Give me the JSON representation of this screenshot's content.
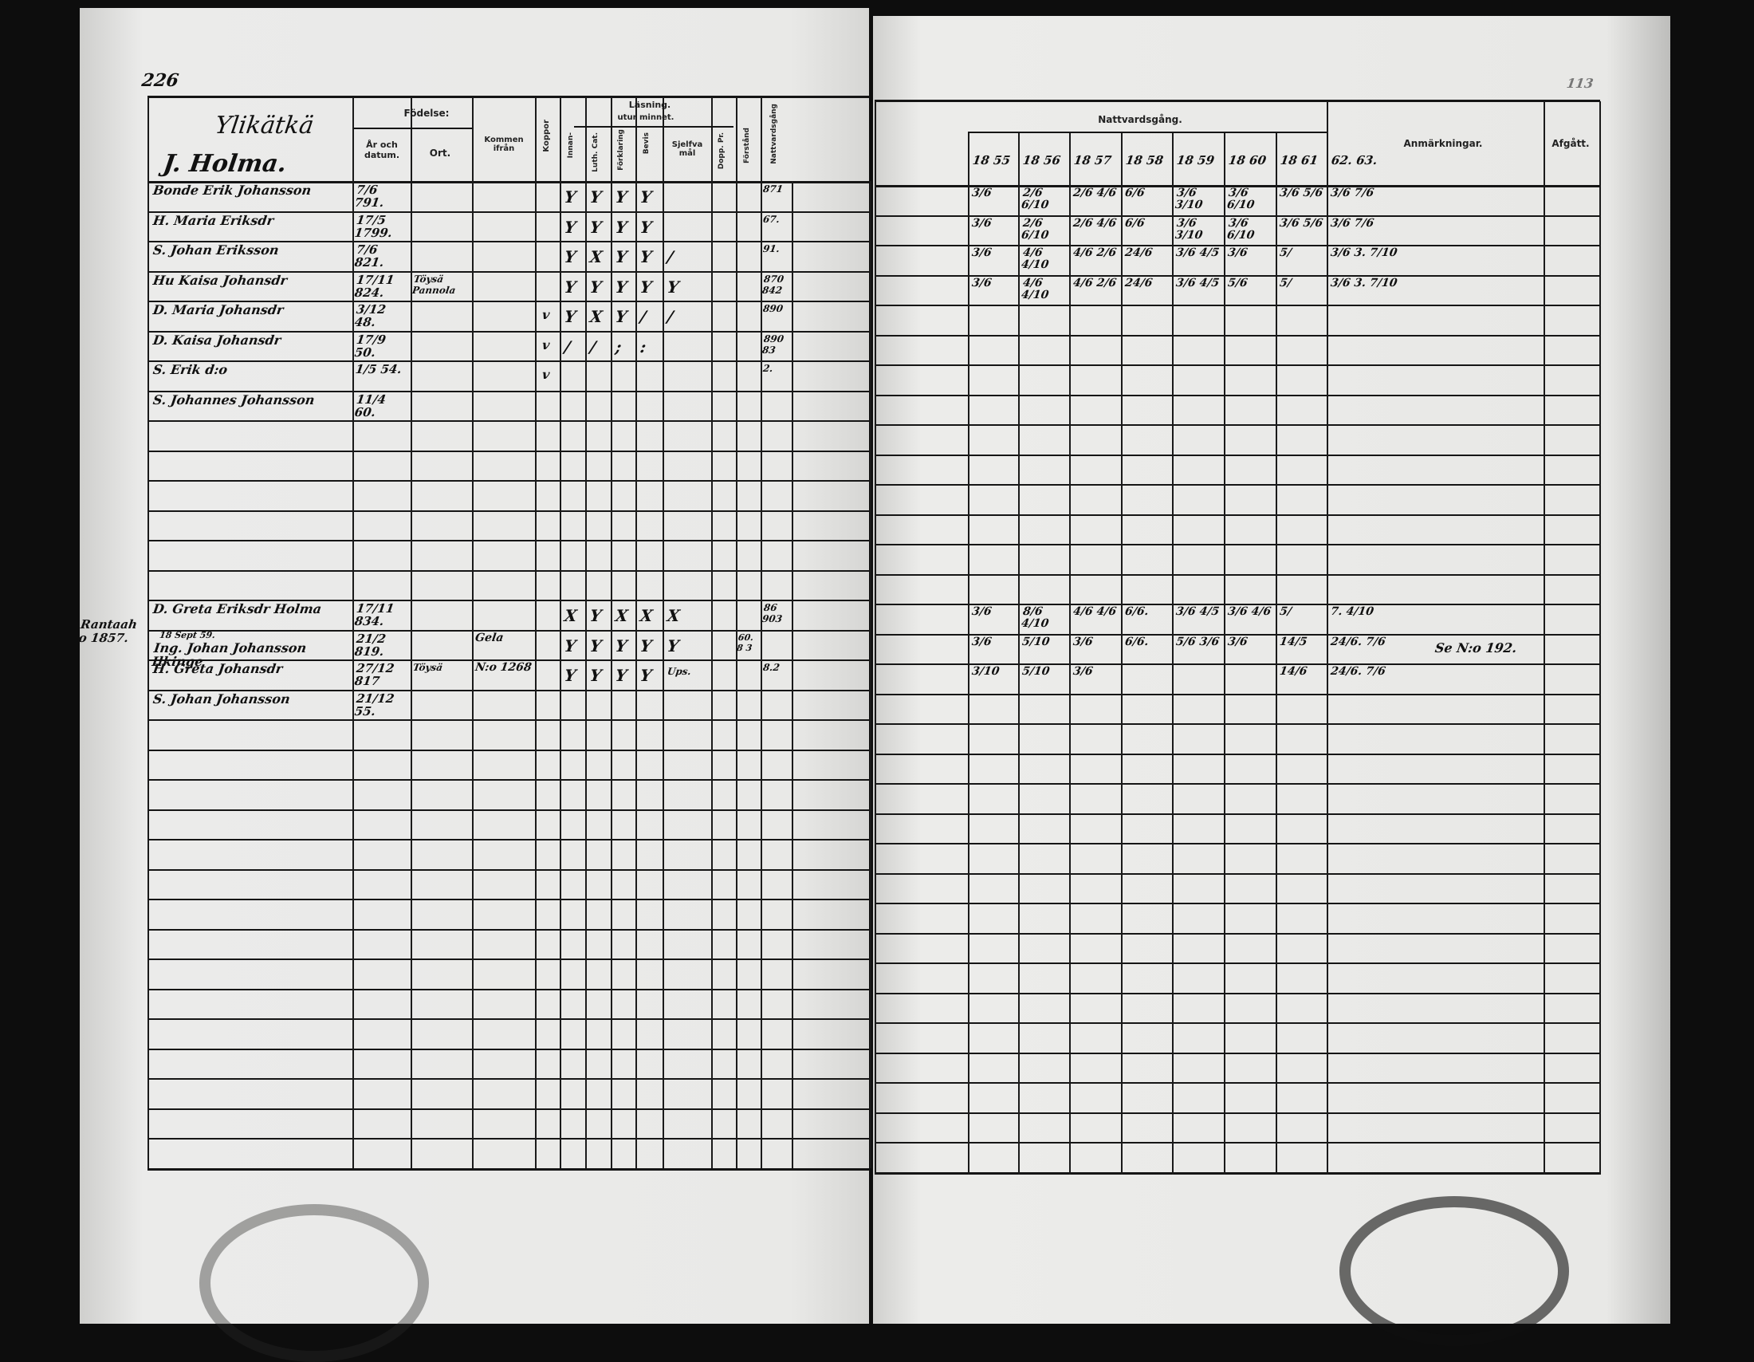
{
  "page_number": "226",
  "left": {
    "title_line1": "Ylikätkä",
    "title_line2": "J. Holma.",
    "headers": {
      "fodelse": "Födelse:",
      "ar": "År och datum.",
      "ort": "Ort.",
      "kommen": "Kommen ifrån",
      "koppor": "Koppor",
      "lasning": "Läsning.",
      "utur_minnet": "utur minnet.",
      "innan": "Innan-",
      "catechism": "Luth. Cat.",
      "forklaring": "Förklaring",
      "bevis": "Bevis",
      "sjelfva": "Sjelfva mål",
      "dopp": "Dopp. Pr.",
      "forstand": "Förstånd",
      "nattvard": "Nattvardsgång"
    },
    "rows": [
      {
        "row": 0,
        "name": "Bonde Erik Johansson",
        "born": "7/6 791.",
        "ort": "",
        "kommen": "",
        "koppor": "",
        "marks": [
          "Y",
          "Y",
          "Y",
          "Y",
          "",
          ""
        ],
        "extra": "",
        "nr": "871"
      },
      {
        "row": 1,
        "name": "H. Maria Eriksdr",
        "born": "17/5 1799.",
        "ort": "",
        "kommen": "",
        "koppor": "",
        "marks": [
          "Y",
          "Y",
          "Y",
          "Y",
          "",
          ""
        ],
        "extra": "",
        "nr": "67."
      },
      {
        "row": 2,
        "name": "S. Johan Eriksson",
        "born": "7/6 821.",
        "ort": "",
        "kommen": "",
        "koppor": "",
        "marks": [
          "Y",
          "X",
          "Y",
          "Y",
          "/",
          ""
        ],
        "extra": "",
        "nr": "91."
      },
      {
        "row": 3,
        "name": "Hu Kaisa Johansdr",
        "born": "17/11 824.",
        "ort": "Töysä Pannola",
        "kommen": "",
        "koppor": "",
        "marks": [
          "Y",
          "Y",
          "Y",
          "Y",
          "Y",
          ""
        ],
        "extra": "",
        "nr": "870 842"
      },
      {
        "row": 4,
        "name": "D. Maria Johansdr",
        "born": "3/12 48.",
        "ort": "",
        "kommen": "",
        "koppor": "v",
        "marks": [
          "Y",
          "X",
          "Y",
          "/",
          "/",
          ""
        ],
        "extra": "",
        "nr": "890"
      },
      {
        "row": 5,
        "name": "D. Kaisa Johansdr",
        "born": "17/9 50.",
        "ort": "",
        "kommen": "",
        "koppor": "v",
        "marks": [
          "/",
          "/",
          ";",
          ":",
          "",
          ""
        ],
        "extra": "",
        "nr": "890 83"
      },
      {
        "row": 6,
        "name": "S. Erik d:o",
        "born": "1/5 54.",
        "ort": "",
        "kommen": "",
        "koppor": "v",
        "marks": [
          "",
          "",
          "",
          "",
          "",
          ""
        ],
        "extra": "",
        "nr": "2."
      },
      {
        "row": 7,
        "name": "S. Johannes Johansson",
        "born": "11/4 60.",
        "ort": "",
        "kommen": "",
        "koppor": "",
        "marks": [
          "",
          "",
          "",
          "",
          "",
          ""
        ],
        "extra": "",
        "nr": ""
      },
      {
        "row": 14,
        "name": "D. Greta Eriksdr Holma",
        "born": "17/11 834.",
        "ort": "",
        "kommen": "",
        "koppor": "",
        "marks": [
          "X",
          "Y",
          "X",
          "X",
          "X",
          ""
        ],
        "extra": "",
        "nr": "86 903"
      },
      {
        "row": 15,
        "name": "Ing. Johan Johansson Ilkinge",
        "born": "21/2 819.",
        "ort": "",
        "kommen": "Gela",
        "koppor": "",
        "marks": [
          "Y",
          "Y",
          "Y",
          "Y",
          "Y",
          ""
        ],
        "extra": "60.8 3",
        "nr": ""
      },
      {
        "row": 16,
        "name": "H. Greta Johansdr",
        "born": "27/12 817",
        "ort": "Töysä",
        "kommen": "N:o 1268",
        "koppor": "",
        "marks": [
          "Y",
          "Y",
          "Y",
          "Y",
          "Ups.",
          ""
        ],
        "extra": "",
        "nr": "8.2"
      },
      {
        "row": 17,
        "name": "S. Johan Johansson",
        "born": "21/12 55.",
        "ort": "",
        "kommen": "",
        "koppor": "",
        "marks": [
          "",
          "",
          "",
          "",
          "",
          ""
        ],
        "extra": "",
        "nr": ""
      }
    ],
    "margin_note": "Rantaaho 1857.",
    "small_note": "18 Sept 59."
  },
  "right": {
    "nattvard_title": "Nattvardsgång.",
    "years": [
      "18 55",
      "18 56",
      "18 57",
      "18 58",
      "18 59",
      "18 60",
      "18 61",
      "62. 63."
    ],
    "anmarkningar": "Anmärkningar.",
    "afgatt": "Afgått.",
    "rows": [
      {
        "row": 0,
        "cells": [
          "3/6",
          "2/6 6/10",
          "2/6 4/6",
          "6/6",
          "3/6 3/10",
          "3/6 6/10",
          "3/6 5/6",
          "3/6 7/6"
        ],
        "note": ""
      },
      {
        "row": 1,
        "cells": [
          "3/6",
          "2/6 6/10",
          "2/6 4/6",
          "6/6",
          "3/6 3/10",
          "3/6 6/10",
          "3/6 5/6",
          "3/6 7/6"
        ],
        "note": ""
      },
      {
        "row": 2,
        "cells": [
          "3/6",
          "4/6 4/10",
          "4/6 2/6",
          "24/6",
          "3/6 4/5",
          "3/6",
          "5/",
          "3/6 3. 7/10"
        ],
        "note": ""
      },
      {
        "row": 3,
        "cells": [
          "3/6",
          "4/6 4/10",
          "4/6 2/6",
          "24/6",
          "3/6 4/5",
          "5/6",
          "5/",
          "3/6 3. 7/10"
        ],
        "note": ""
      },
      {
        "row": 14,
        "cells": [
          "3/6",
          "8/6 4/10",
          "4/6 4/6",
          "6/6.",
          "3/6 4/5",
          "3/6 4/6",
          "5/",
          "7. 4/10"
        ],
        "note": ""
      },
      {
        "row": 15,
        "cells": [
          "3/6",
          "5/10",
          "3/6",
          "6/6.",
          "5/6 3/6",
          "3/6",
          "14/5",
          "24/6. 7/6"
        ],
        "note": "Se N:o 192."
      },
      {
        "row": 16,
        "cells": [
          "3/10",
          "5/10",
          "3/6",
          "",
          "",
          "",
          "14/6",
          "24/6. 7/6"
        ],
        "note": ""
      }
    ],
    "corner_mark": "113"
  },
  "colors": {
    "ink": "#111111",
    "paper": "#e6e6e4",
    "frame": "#0d0d0d"
  }
}
